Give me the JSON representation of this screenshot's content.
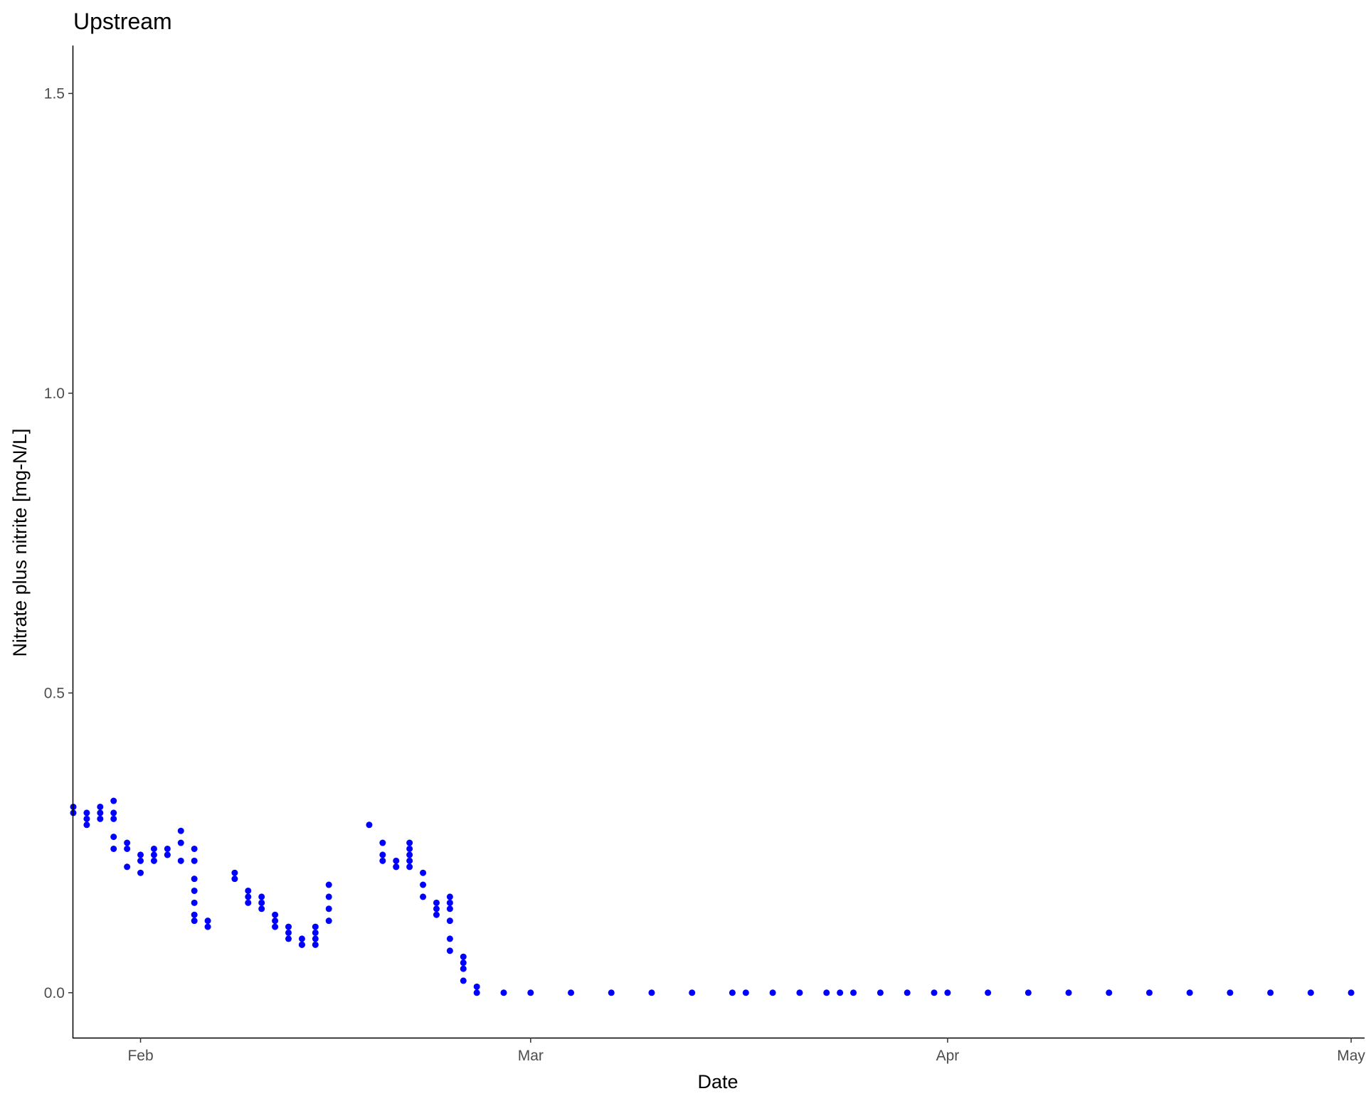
{
  "chart_data": {
    "type": "scatter",
    "title": "Upstream",
    "xlabel": "Date",
    "ylabel": "Nitrate plus nitrite [mg-N/L]",
    "x_type": "date",
    "x_range": [
      "2024-01-27",
      "2024-05-02"
    ],
    "y_range": [
      -0.075,
      1.58
    ],
    "x_ticks": [
      {
        "label": "Feb",
        "date": "2024-02-01"
      },
      {
        "label": "Mar",
        "date": "2024-03-01"
      },
      {
        "label": "Apr",
        "date": "2024-04-01"
      },
      {
        "label": "May",
        "date": "2024-05-01"
      }
    ],
    "y_ticks": [
      {
        "label": "0.0",
        "value": 0.0
      },
      {
        "label": "0.5",
        "value": 0.5
      },
      {
        "label": "1.0",
        "value": 1.0
      },
      {
        "label": "1.5",
        "value": 1.5
      }
    ],
    "grid": false,
    "legend": "none",
    "series": [
      {
        "color": "#0000ff",
        "points": [
          [
            "2024-01-27",
            0.3
          ],
          [
            "2024-01-27",
            0.31
          ],
          [
            "2024-01-28",
            0.3
          ],
          [
            "2024-01-28",
            0.29
          ],
          [
            "2024-01-28",
            0.28
          ],
          [
            "2024-01-29",
            0.29
          ],
          [
            "2024-01-29",
            0.3
          ],
          [
            "2024-01-29",
            0.31
          ],
          [
            "2024-01-30",
            0.3
          ],
          [
            "2024-01-30",
            0.32
          ],
          [
            "2024-01-30",
            0.29
          ],
          [
            "2024-01-30",
            0.26
          ],
          [
            "2024-01-30",
            0.24
          ],
          [
            "2024-01-31",
            0.25
          ],
          [
            "2024-01-31",
            0.24
          ],
          [
            "2024-01-31",
            0.21
          ],
          [
            "2024-02-01",
            0.2
          ],
          [
            "2024-02-01",
            0.22
          ],
          [
            "2024-02-01",
            0.23
          ],
          [
            "2024-02-02",
            0.22
          ],
          [
            "2024-02-02",
            0.23
          ],
          [
            "2024-02-02",
            0.24
          ],
          [
            "2024-02-03",
            0.23
          ],
          [
            "2024-02-03",
            0.24
          ],
          [
            "2024-02-03",
            0.23
          ],
          [
            "2024-02-04",
            0.22
          ],
          [
            "2024-02-04",
            0.25
          ],
          [
            "2024-02-04",
            0.27
          ],
          [
            "2024-02-05",
            0.24
          ],
          [
            "2024-02-05",
            0.22
          ],
          [
            "2024-02-05",
            0.19
          ],
          [
            "2024-02-05",
            0.17
          ],
          [
            "2024-02-05",
            0.15
          ],
          [
            "2024-02-05",
            0.13
          ],
          [
            "2024-02-05",
            0.12
          ],
          [
            "2024-02-06",
            0.11
          ],
          [
            "2024-02-06",
            0.12
          ],
          [
            "2024-02-08",
            0.2
          ],
          [
            "2024-02-08",
            0.19
          ],
          [
            "2024-02-09",
            0.17
          ],
          [
            "2024-02-09",
            0.16
          ],
          [
            "2024-02-09",
            0.15
          ],
          [
            "2024-02-10",
            0.16
          ],
          [
            "2024-02-10",
            0.15
          ],
          [
            "2024-02-10",
            0.14
          ],
          [
            "2024-02-11",
            0.13
          ],
          [
            "2024-02-11",
            0.12
          ],
          [
            "2024-02-11",
            0.11
          ],
          [
            "2024-02-12",
            0.11
          ],
          [
            "2024-02-12",
            0.1
          ],
          [
            "2024-02-12",
            0.09
          ],
          [
            "2024-02-13",
            0.08
          ],
          [
            "2024-02-13",
            0.09
          ],
          [
            "2024-02-13",
            0.08
          ],
          [
            "2024-02-14",
            0.08
          ],
          [
            "2024-02-14",
            0.09
          ],
          [
            "2024-02-14",
            0.1
          ],
          [
            "2024-02-14",
            0.11
          ],
          [
            "2024-02-15",
            0.12
          ],
          [
            "2024-02-15",
            0.14
          ],
          [
            "2024-02-15",
            0.16
          ],
          [
            "2024-02-15",
            0.18
          ],
          [
            "2024-02-18",
            0.28
          ],
          [
            "2024-02-19",
            0.25
          ],
          [
            "2024-02-19",
            0.23
          ],
          [
            "2024-02-19",
            0.22
          ],
          [
            "2024-02-20",
            0.21
          ],
          [
            "2024-02-20",
            0.22
          ],
          [
            "2024-02-20",
            0.21
          ],
          [
            "2024-02-21",
            0.22
          ],
          [
            "2024-02-21",
            0.24
          ],
          [
            "2024-02-21",
            0.25
          ],
          [
            "2024-02-21",
            0.23
          ],
          [
            "2024-02-21",
            0.21
          ],
          [
            "2024-02-22",
            0.2
          ],
          [
            "2024-02-22",
            0.18
          ],
          [
            "2024-02-22",
            0.16
          ],
          [
            "2024-02-23",
            0.15
          ],
          [
            "2024-02-23",
            0.14
          ],
          [
            "2024-02-23",
            0.13
          ],
          [
            "2024-02-24",
            0.14
          ],
          [
            "2024-02-24",
            0.16
          ],
          [
            "2024-02-24",
            0.15
          ],
          [
            "2024-02-24",
            0.12
          ],
          [
            "2024-02-24",
            0.09
          ],
          [
            "2024-02-24",
            0.07
          ],
          [
            "2024-02-25",
            0.06
          ],
          [
            "2024-02-25",
            0.05
          ],
          [
            "2024-02-25",
            0.04
          ],
          [
            "2024-02-25",
            0.02
          ],
          [
            "2024-02-26",
            0.01
          ],
          [
            "2024-02-26",
            0.0
          ],
          [
            "2024-02-28",
            0.0
          ],
          [
            "2024-03-01",
            0.0
          ],
          [
            "2024-03-04",
            0.0
          ],
          [
            "2024-03-07",
            0.0
          ],
          [
            "2024-03-10",
            0.0
          ],
          [
            "2024-03-13",
            0.0
          ],
          [
            "2024-03-16",
            0.0
          ],
          [
            "2024-03-17",
            0.0
          ],
          [
            "2024-03-19",
            0.0
          ],
          [
            "2024-03-21",
            0.0
          ],
          [
            "2024-03-23",
            0.0
          ],
          [
            "2024-03-24",
            0.0
          ],
          [
            "2024-03-25",
            0.0
          ],
          [
            "2024-03-27",
            0.0
          ],
          [
            "2024-03-29",
            0.0
          ],
          [
            "2024-03-31",
            0.0
          ],
          [
            "2024-04-01",
            0.0
          ],
          [
            "2024-04-04",
            0.0
          ],
          [
            "2024-04-07",
            0.0
          ],
          [
            "2024-04-10",
            0.0
          ],
          [
            "2024-04-13",
            0.0
          ],
          [
            "2024-04-16",
            0.0
          ],
          [
            "2024-04-19",
            0.0
          ],
          [
            "2024-04-22",
            0.0
          ],
          [
            "2024-04-25",
            0.0
          ],
          [
            "2024-04-28",
            0.0
          ],
          [
            "2024-05-01",
            0.0
          ]
        ]
      }
    ]
  }
}
